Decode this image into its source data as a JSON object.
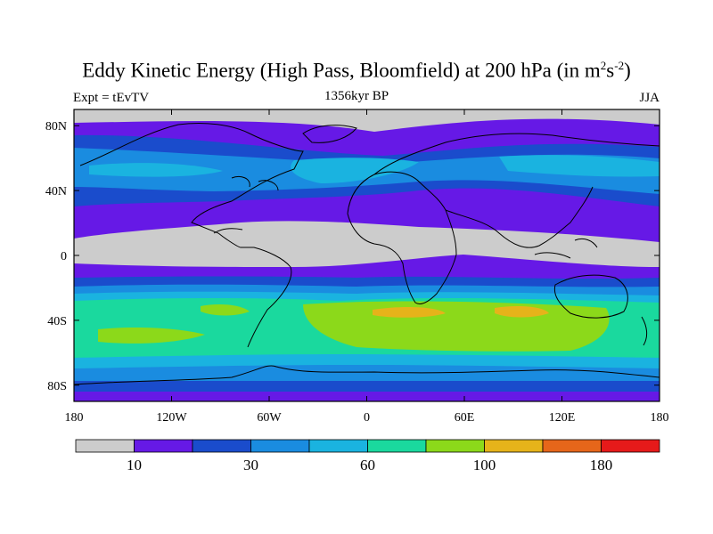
{
  "title_main": "Eddy Kinetic Energy (High Pass, Bloomfield) at 200 hPa (in m",
  "title_sup1": "2",
  "title_mid": "s",
  "title_sup2": "-2",
  "title_end": ")",
  "left_label": "Expt = tEvTV",
  "center_label": "1356kyr BP",
  "right_label": "JJA",
  "lat_ticks": [
    "80N",
    "40N",
    "0",
    "40S",
    "80S"
  ],
  "lon_ticks": [
    "180",
    "120W",
    "60W",
    "0",
    "60E",
    "120E",
    "180"
  ],
  "colorbar": {
    "colors": [
      "#cccccc",
      "#6619e6",
      "#1a4ccc",
      "#1a8ce0",
      "#1ab3e0",
      "#1ad99e",
      "#8cd91a",
      "#e6b31a",
      "#e6661a",
      "#e61a1a"
    ],
    "labels": [
      {
        "text": "10",
        "boundary": 1
      },
      {
        "text": "30",
        "boundary": 3
      },
      {
        "text": "60",
        "boundary": 5
      },
      {
        "text": "100",
        "boundary": 7
      },
      {
        "text": "180",
        "boundary": 9
      }
    ]
  }
}
